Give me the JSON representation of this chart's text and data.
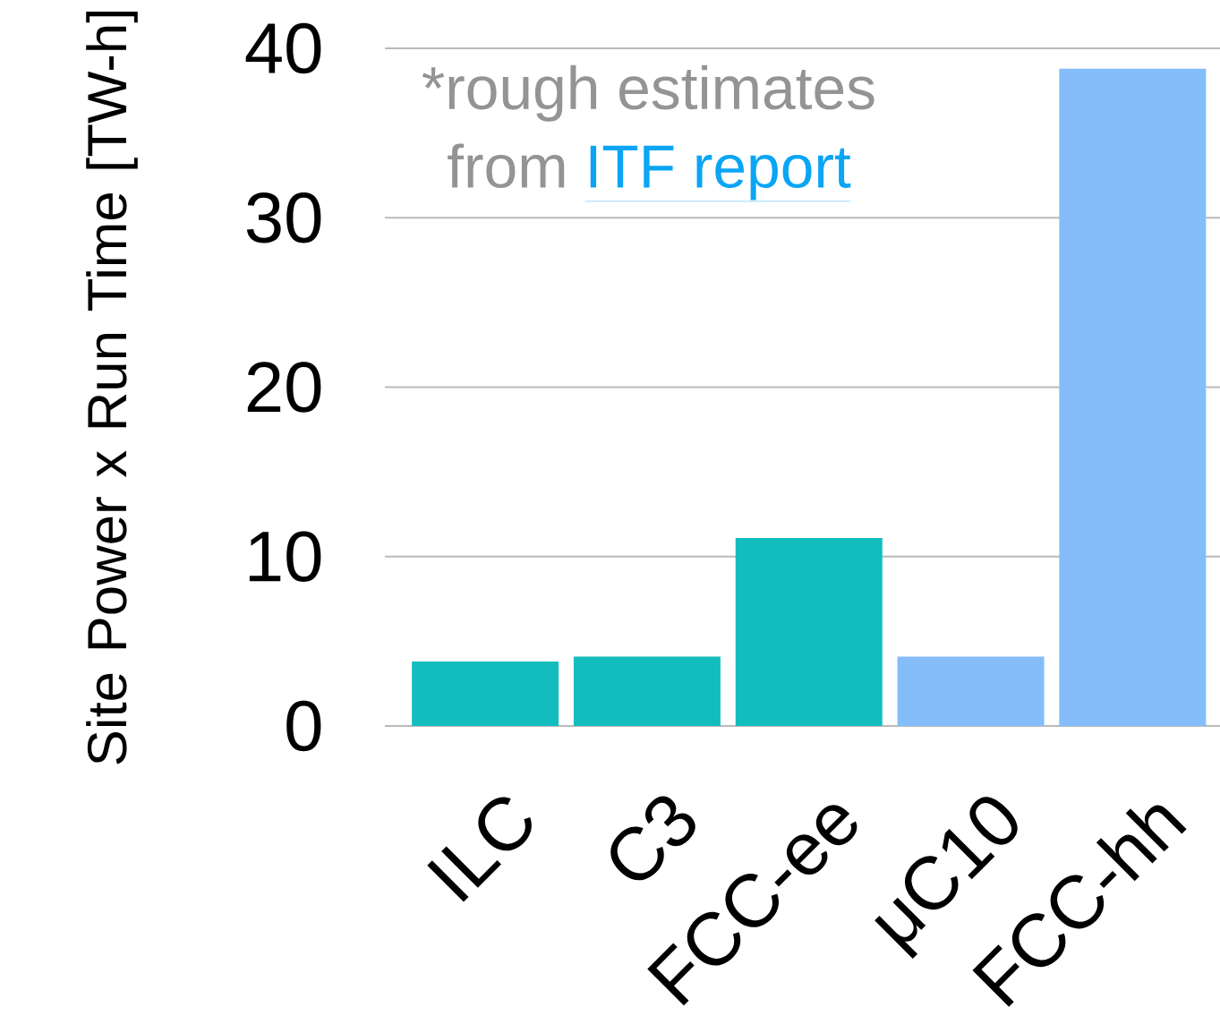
{
  "chart_data": {
    "type": "bar",
    "ylabel": "Site Power x Run Time [TW-h]",
    "categories": [
      "ILC",
      "C3",
      "FCC-ee",
      "μC10",
      "FCC-hh"
    ],
    "values": [
      3.8,
      4.1,
      11.1,
      4.1,
      38.8
    ],
    "colors": [
      "#14bdbd",
      "#14bdbd",
      "#14bdbd",
      "#85bdfb",
      "#85bdfb"
    ],
    "ylim": [
      0,
      40
    ],
    "yticks": [
      0,
      10,
      20,
      30,
      40
    ],
    "grid": "y",
    "annotations": [
      "*rough estimates",
      "from",
      "ITF report"
    ]
  }
}
